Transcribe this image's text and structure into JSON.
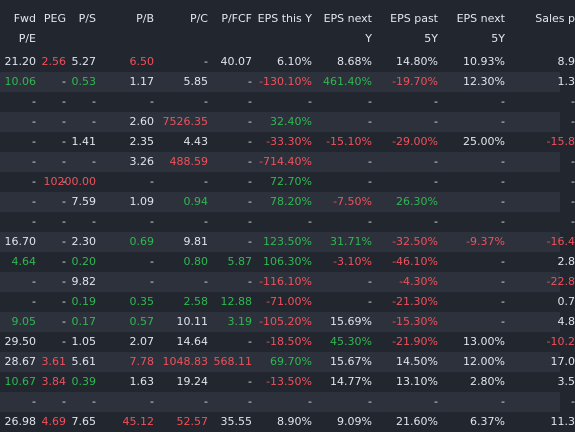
{
  "colors": {
    "background": "#22262f",
    "stripe": "#2c313b",
    "text": "#dfe3ea",
    "positive": "#2fb84f",
    "negative": "#f0505a"
  },
  "columns": [
    {
      "key": "fwd_pe",
      "line1": "Fwd",
      "line2": "P/E"
    },
    {
      "key": "peg",
      "line1": "PEG",
      "line2": ""
    },
    {
      "key": "ps",
      "line1": "P/S",
      "line2": ""
    },
    {
      "key": "pb",
      "line1": "P/B",
      "line2": ""
    },
    {
      "key": "pc",
      "line1": "P/C",
      "line2": ""
    },
    {
      "key": "pfcf",
      "line1": "P/FCF",
      "line2": ""
    },
    {
      "key": "eps_this_y",
      "line1": "EPS this Y",
      "line2": ""
    },
    {
      "key": "eps_next_y",
      "line1": "EPS next",
      "line2": "Y"
    },
    {
      "key": "eps_past_5y",
      "line1": "EPS past",
      "line2": "5Y"
    },
    {
      "key": "eps_next_5y",
      "line1": "EPS next",
      "line2": "5Y"
    },
    {
      "key": "sales_past",
      "line1": "Sales p",
      "line2": ""
    }
  ],
  "rows": [
    [
      [
        "21.20",
        "w"
      ],
      [
        "2.56",
        "r"
      ],
      [
        "5.27",
        "w"
      ],
      [
        "6.50",
        "r"
      ],
      [
        "-",
        "w"
      ],
      [
        "40.07",
        "w"
      ],
      [
        "6.10%",
        "w"
      ],
      [
        "8.68%",
        "w"
      ],
      [
        "14.80%",
        "w"
      ],
      [
        "10.93%",
        "w"
      ],
      [
        "8.9",
        "w"
      ]
    ],
    [
      [
        "10.06",
        "g"
      ],
      [
        "-",
        "w"
      ],
      [
        "0.53",
        "g"
      ],
      [
        "1.17",
        "w"
      ],
      [
        "5.85",
        "w"
      ],
      [
        "-",
        "w"
      ],
      [
        "-130.10%",
        "r"
      ],
      [
        "461.40%",
        "g"
      ],
      [
        "-19.70%",
        "r"
      ],
      [
        "12.30%",
        "w"
      ],
      [
        "1.3",
        "w"
      ]
    ],
    [
      [
        "-",
        "w"
      ],
      [
        "-",
        "w"
      ],
      [
        "-",
        "w"
      ],
      [
        "-",
        "w"
      ],
      [
        "-",
        "w"
      ],
      [
        "-",
        "w"
      ],
      [
        "-",
        "w"
      ],
      [
        "-",
        "w"
      ],
      [
        "-",
        "w"
      ],
      [
        "-",
        "w"
      ],
      [
        "-",
        "w"
      ]
    ],
    [
      [
        "-",
        "w"
      ],
      [
        "-",
        "w"
      ],
      [
        "-",
        "w"
      ],
      [
        "2.60",
        "w"
      ],
      [
        "7526.35",
        "r"
      ],
      [
        "-",
        "w"
      ],
      [
        "32.40%",
        "g"
      ],
      [
        "-",
        "w"
      ],
      [
        "-",
        "w"
      ],
      [
        "-",
        "w"
      ],
      [
        "-",
        "w"
      ]
    ],
    [
      [
        "-",
        "w"
      ],
      [
        "-",
        "w"
      ],
      [
        "1.41",
        "w"
      ],
      [
        "2.35",
        "w"
      ],
      [
        "4.43",
        "w"
      ],
      [
        "-",
        "w"
      ],
      [
        "-33.30%",
        "r"
      ],
      [
        "-15.10%",
        "r"
      ],
      [
        "-29.00%",
        "r"
      ],
      [
        "25.00%",
        "w"
      ],
      [
        "-15.8",
        "r"
      ]
    ],
    [
      [
        "-",
        "w"
      ],
      [
        "-",
        "w"
      ],
      [
        "-",
        "w"
      ],
      [
        "3.26",
        "w"
      ],
      [
        "488.59",
        "r"
      ],
      [
        "-",
        "w"
      ],
      [
        "-714.40%",
        "r"
      ],
      [
        "-",
        "w"
      ],
      [
        "-",
        "w"
      ],
      [
        "-",
        "w"
      ],
      [
        "-",
        "w"
      ]
    ],
    [
      [
        "-",
        "w"
      ],
      [
        "-",
        "w"
      ],
      [
        "10200.00",
        "r"
      ],
      [
        "-",
        "w"
      ],
      [
        "-",
        "w"
      ],
      [
        "-",
        "w"
      ],
      [
        "72.70%",
        "g"
      ],
      [
        "-",
        "w"
      ],
      [
        "-",
        "w"
      ],
      [
        "-",
        "w"
      ],
      [
        "-",
        "w"
      ]
    ],
    [
      [
        "-",
        "w"
      ],
      [
        "-",
        "w"
      ],
      [
        "7.59",
        "w"
      ],
      [
        "1.09",
        "w"
      ],
      [
        "0.94",
        "g"
      ],
      [
        "-",
        "w"
      ],
      [
        "78.20%",
        "g"
      ],
      [
        "-7.50%",
        "r"
      ],
      [
        "26.30%",
        "g"
      ],
      [
        "-",
        "w"
      ],
      [
        "-",
        "w"
      ]
    ],
    [
      [
        "-",
        "w"
      ],
      [
        "-",
        "w"
      ],
      [
        "-",
        "w"
      ],
      [
        "-",
        "w"
      ],
      [
        "-",
        "w"
      ],
      [
        "-",
        "w"
      ],
      [
        "-",
        "w"
      ],
      [
        "-",
        "w"
      ],
      [
        "-",
        "w"
      ],
      [
        "-",
        "w"
      ],
      [
        "-",
        "w"
      ]
    ],
    [
      [
        "16.70",
        "w"
      ],
      [
        "-",
        "w"
      ],
      [
        "2.30",
        "w"
      ],
      [
        "0.69",
        "g"
      ],
      [
        "9.81",
        "w"
      ],
      [
        "-",
        "w"
      ],
      [
        "123.50%",
        "g"
      ],
      [
        "31.71%",
        "g"
      ],
      [
        "-32.50%",
        "r"
      ],
      [
        "-9.37%",
        "r"
      ],
      [
        "-16.4",
        "r"
      ]
    ],
    [
      [
        "4.64",
        "g"
      ],
      [
        "-",
        "w"
      ],
      [
        "0.20",
        "g"
      ],
      [
        "-",
        "w"
      ],
      [
        "0.80",
        "g"
      ],
      [
        "5.87",
        "g"
      ],
      [
        "106.30%",
        "g"
      ],
      [
        "-3.10%",
        "r"
      ],
      [
        "-46.10%",
        "r"
      ],
      [
        "-",
        "w"
      ],
      [
        "2.8",
        "w"
      ]
    ],
    [
      [
        "-",
        "w"
      ],
      [
        "-",
        "w"
      ],
      [
        "9.82",
        "w"
      ],
      [
        "-",
        "w"
      ],
      [
        "-",
        "w"
      ],
      [
        "-",
        "w"
      ],
      [
        "-116.10%",
        "r"
      ],
      [
        "-",
        "w"
      ],
      [
        "-4.30%",
        "r"
      ],
      [
        "-",
        "w"
      ],
      [
        "-22.8",
        "r"
      ]
    ],
    [
      [
        "-",
        "w"
      ],
      [
        "-",
        "w"
      ],
      [
        "0.19",
        "g"
      ],
      [
        "0.35",
        "g"
      ],
      [
        "2.58",
        "g"
      ],
      [
        "12.88",
        "g"
      ],
      [
        "-71.00%",
        "r"
      ],
      [
        "-",
        "w"
      ],
      [
        "-21.30%",
        "r"
      ],
      [
        "-",
        "w"
      ],
      [
        "0.7",
        "w"
      ]
    ],
    [
      [
        "9.05",
        "g"
      ],
      [
        "-",
        "w"
      ],
      [
        "0.17",
        "g"
      ],
      [
        "0.57",
        "g"
      ],
      [
        "10.11",
        "w"
      ],
      [
        "3.19",
        "g"
      ],
      [
        "-105.20%",
        "r"
      ],
      [
        "15.69%",
        "w"
      ],
      [
        "-15.30%",
        "r"
      ],
      [
        "-",
        "w"
      ],
      [
        "4.8",
        "w"
      ]
    ],
    [
      [
        "29.50",
        "w"
      ],
      [
        "-",
        "w"
      ],
      [
        "1.05",
        "w"
      ],
      [
        "2.07",
        "w"
      ],
      [
        "14.64",
        "w"
      ],
      [
        "-",
        "w"
      ],
      [
        "-18.50%",
        "r"
      ],
      [
        "45.30%",
        "g"
      ],
      [
        "-21.90%",
        "r"
      ],
      [
        "13.00%",
        "w"
      ],
      [
        "-10.2",
        "r"
      ]
    ],
    [
      [
        "28.67",
        "w"
      ],
      [
        "3.61",
        "r"
      ],
      [
        "5.61",
        "w"
      ],
      [
        "7.78",
        "r"
      ],
      [
        "1048.83",
        "r"
      ],
      [
        "568.11",
        "r"
      ],
      [
        "69.70%",
        "g"
      ],
      [
        "15.67%",
        "w"
      ],
      [
        "14.50%",
        "w"
      ],
      [
        "12.00%",
        "w"
      ],
      [
        "17.0",
        "w"
      ]
    ],
    [
      [
        "10.67",
        "g"
      ],
      [
        "3.84",
        "r"
      ],
      [
        "0.39",
        "g"
      ],
      [
        "1.63",
        "w"
      ],
      [
        "19.24",
        "w"
      ],
      [
        "-",
        "w"
      ],
      [
        "-13.50%",
        "r"
      ],
      [
        "14.77%",
        "w"
      ],
      [
        "13.10%",
        "w"
      ],
      [
        "2.80%",
        "w"
      ],
      [
        "3.5",
        "w"
      ]
    ],
    [
      [
        "-",
        "w"
      ],
      [
        "-",
        "w"
      ],
      [
        "-",
        "w"
      ],
      [
        "-",
        "w"
      ],
      [
        "-",
        "w"
      ],
      [
        "-",
        "w"
      ],
      [
        "-",
        "w"
      ],
      [
        "-",
        "w"
      ],
      [
        "-",
        "w"
      ],
      [
        "-",
        "w"
      ],
      [
        "-",
        "w"
      ]
    ],
    [
      [
        "26.98",
        "w"
      ],
      [
        "4.69",
        "r"
      ],
      [
        "7.65",
        "w"
      ],
      [
        "45.12",
        "r"
      ],
      [
        "52.57",
        "r"
      ],
      [
        "35.55",
        "w"
      ],
      [
        "8.90%",
        "w"
      ],
      [
        "9.09%",
        "w"
      ],
      [
        "21.60%",
        "w"
      ],
      [
        "6.37%",
        "w"
      ],
      [
        "11.3",
        "w"
      ]
    ]
  ]
}
